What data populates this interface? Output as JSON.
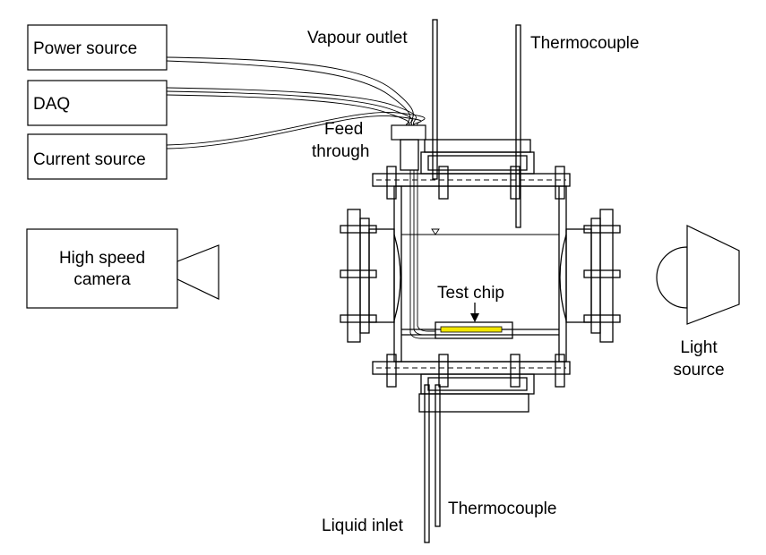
{
  "labels": {
    "power_source": "Power source",
    "daq": "DAQ",
    "current_source": "Current source",
    "high_speed_camera_line1": "High speed",
    "high_speed_camera_line2": "camera",
    "vapour_outlet": "Vapour outlet",
    "thermocouple_top": "Thermocouple",
    "feed_through_line1": "Feed",
    "feed_through_line2": "through",
    "test_chip": "Test chip",
    "light_source_line1": "Light",
    "light_source_line2": "source",
    "thermocouple_bottom": "Thermocouple",
    "liquid_inlet": "Liquid inlet"
  },
  "colors": {
    "test_chip_heater": "#f2e600",
    "line": "#000000"
  }
}
